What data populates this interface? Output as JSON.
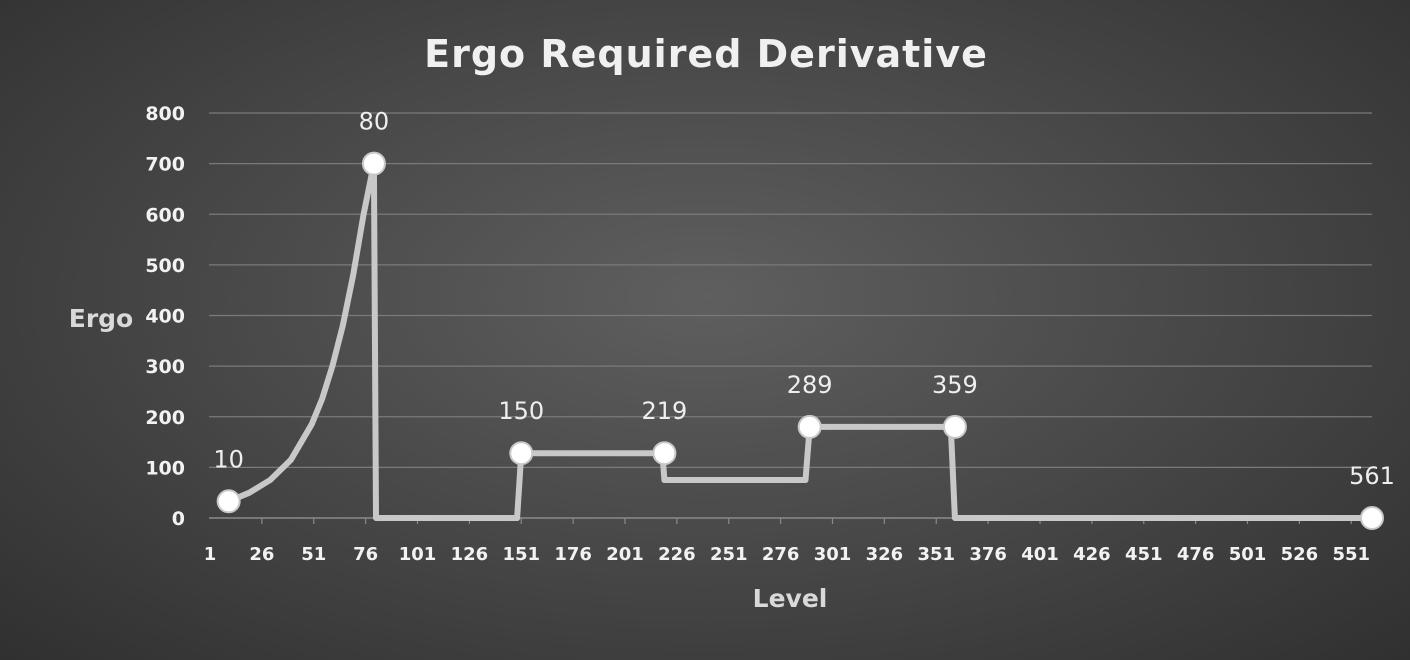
{
  "chart_data": {
    "type": "line",
    "title": "Ergo Required Derivative",
    "xlabel": "Level",
    "ylabel": "Ergo",
    "ylim": [
      0,
      800
    ],
    "yticks": [
      0,
      100,
      200,
      300,
      400,
      500,
      600,
      700,
      800
    ],
    "xlim": [
      1,
      562
    ],
    "xticks": [
      1,
      26,
      51,
      76,
      101,
      126,
      151,
      176,
      201,
      226,
      251,
      276,
      301,
      326,
      351,
      376,
      401,
      426,
      451,
      476,
      501,
      526,
      551
    ],
    "grid": true,
    "legend": "none",
    "series": [
      {
        "x": [
          10,
          20,
          30,
          40,
          50,
          55,
          60,
          65,
          70,
          75,
          80,
          81,
          149,
          151,
          219,
          220,
          288,
          290,
          358,
          360,
          561
        ],
        "y": [
          33,
          50,
          75,
          115,
          185,
          235,
          300,
          380,
          480,
          600,
          700,
          0,
          0,
          128,
          128,
          75,
          75,
          180,
          180,
          0,
          0
        ]
      }
    ],
    "markers": [
      {
        "x": 10,
        "y": 33,
        "label": "10"
      },
      {
        "x": 80,
        "y": 700,
        "label": "80"
      },
      {
        "x": 151,
        "y": 128,
        "label": "150"
      },
      {
        "x": 220,
        "y": 128,
        "label": "219"
      },
      {
        "x": 290,
        "y": 180,
        "label": "289"
      },
      {
        "x": 360,
        "y": 180,
        "label": "359"
      },
      {
        "x": 561,
        "y": 0,
        "label": "561"
      }
    ]
  }
}
